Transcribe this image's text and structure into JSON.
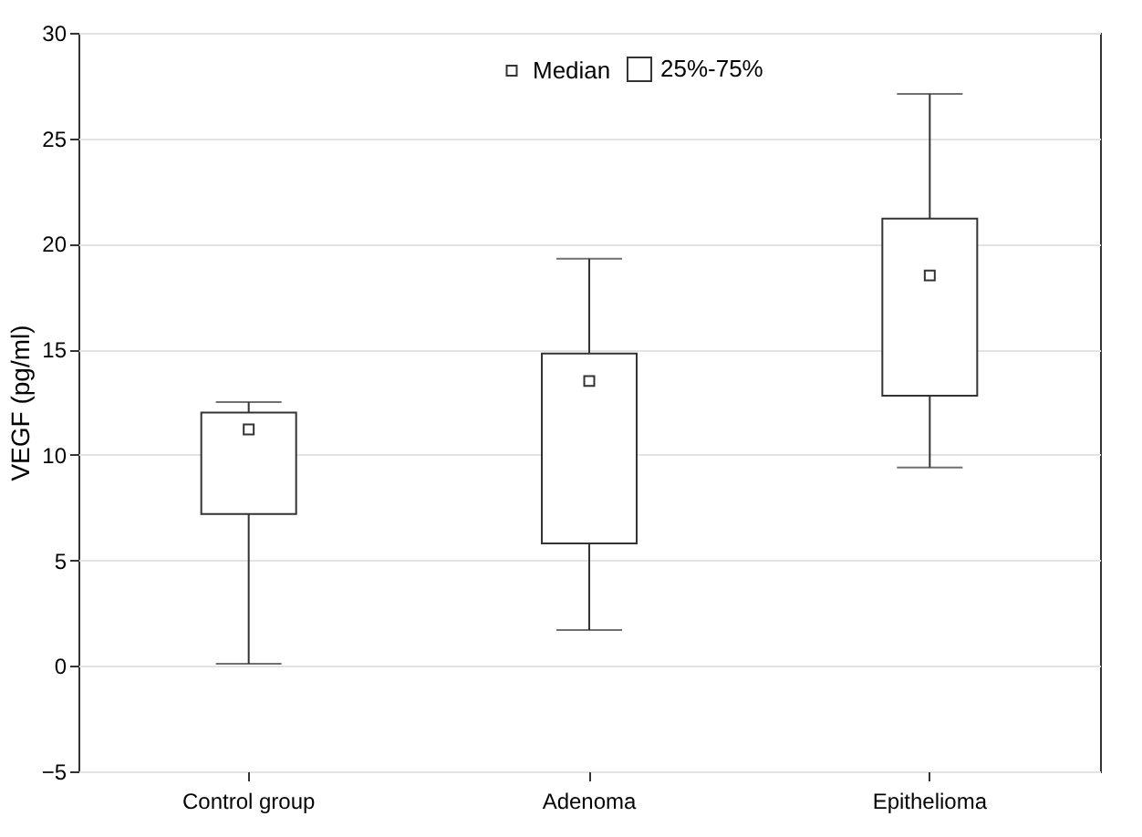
{
  "chart_data": {
    "type": "box",
    "ylabel": "VEGF (pg/ml)",
    "categories": [
      "Control group",
      "Adenoma",
      "Epithelioma"
    ],
    "series": [
      {
        "name": "Median",
        "type": "scatter",
        "color": "#ffffff",
        "x": [
          "Control group",
          "Adenoma",
          "Epithelioma"
        ],
        "values": [
          11.2,
          13.5,
          18.5
        ]
      },
      {
        "name": "25%-75%",
        "type": "box",
        "color": "#ffffff",
        "boxes": [
          {
            "low": 0.1,
            "q1": 7.2,
            "q3": 12.0,
            "high": 12.5
          },
          {
            "low": 1.7,
            "q1": 5.8,
            "q3": 14.8,
            "high": 19.3
          },
          {
            "low": 9.4,
            "q1": 12.8,
            "q3": 21.2,
            "high": 27.1
          }
        ]
      }
    ],
    "ylim": [
      -5,
      30
    ],
    "yticks": [
      -5,
      0,
      5,
      10,
      15,
      20,
      25,
      30
    ],
    "grid": "y",
    "legend": "top",
    "marker": "square"
  }
}
